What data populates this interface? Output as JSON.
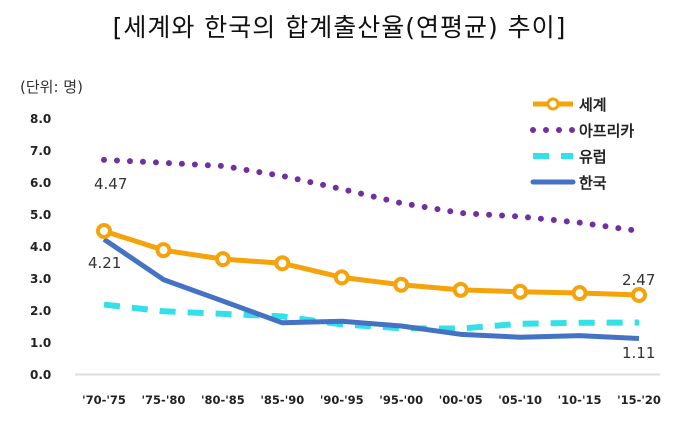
{
  "chart_data": {
    "type": "line",
    "title": "[세계와 한국의 합계출산율(연평균) 추이]",
    "unit_label": "(단위: 명)",
    "categories": [
      "'70-'75",
      "'75-'80",
      "'80-'85",
      "'85-'90",
      "'90-'95",
      "'95-'00",
      "'00-'05",
      "'05-'10",
      "'10-'15",
      "'15-'20"
    ],
    "yticks": [
      "0.0",
      "1.0",
      "2.0",
      "3.0",
      "4.0",
      "5.0",
      "6.0",
      "7.0",
      "8.0"
    ],
    "ylim": [
      0,
      8
    ],
    "legend_position": "top-right",
    "series": [
      {
        "name": "세계",
        "color": "#F5A30A",
        "style": "solid-marker",
        "values": [
          4.47,
          3.87,
          3.59,
          3.46,
          3.02,
          2.79,
          2.63,
          2.57,
          2.53,
          2.47
        ]
      },
      {
        "name": "아프리카",
        "color": "#7030A0",
        "style": "dotted",
        "values": [
          6.69,
          6.6,
          6.5,
          6.19,
          5.78,
          5.34,
          5.03,
          4.92,
          4.73,
          4.47
        ]
      },
      {
        "name": "유럽",
        "color": "#33E0E8",
        "style": "dashed",
        "values": [
          2.17,
          1.96,
          1.88,
          1.8,
          1.55,
          1.43,
          1.42,
          1.57,
          1.6,
          1.61
        ]
      },
      {
        "name": "한국",
        "color": "#4472C4",
        "style": "solid",
        "values": [
          4.21,
          2.95,
          2.28,
          1.6,
          1.65,
          1.5,
          1.24,
          1.15,
          1.2,
          1.11
        ]
      }
    ],
    "annotations": [
      "4.47",
      "4.21",
      "2.47",
      "1.11"
    ]
  }
}
